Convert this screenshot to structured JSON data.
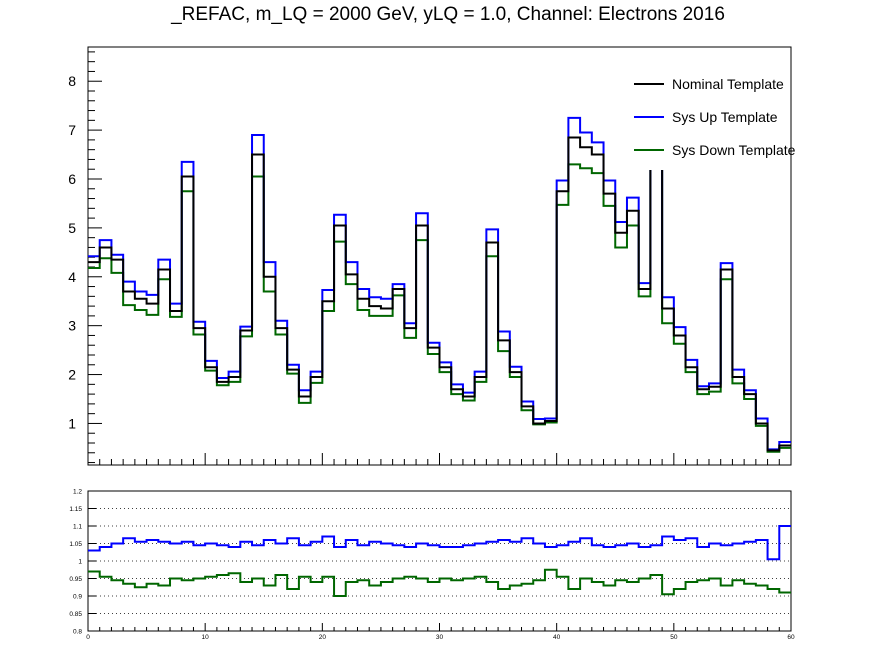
{
  "chart_data": [
    {
      "type": "line",
      "step": true,
      "title": "_REFAC, m_LQ = 2000 GeV, yLQ = 1.0, Channel: Electrons 2016",
      "xlabel": "",
      "ylabel": "",
      "xlim": [
        0,
        60
      ],
      "ylim": [
        0.15,
        8.7
      ],
      "x_bin_edges": [
        0,
        60
      ],
      "yticks": [
        1,
        2,
        3,
        4,
        5,
        6,
        7,
        8
      ],
      "ytick_labels": [
        "1",
        "2",
        "3",
        "4",
        "5",
        "6",
        "7",
        "8"
      ],
      "legend_position": "top-right",
      "series": [
        {
          "name": "Nominal Template",
          "color": "#000000",
          "values": [
            4.3,
            4.6,
            4.35,
            3.7,
            3.55,
            3.45,
            4.15,
            3.3,
            6.05,
            2.95,
            2.15,
            1.85,
            1.95,
            2.9,
            6.5,
            4.0,
            2.95,
            2.1,
            1.55,
            1.95,
            3.5,
            5.05,
            4.05,
            3.55,
            3.4,
            3.35,
            3.75,
            2.95,
            5.05,
            2.55,
            2.15,
            1.7,
            1.55,
            1.95,
            4.7,
            2.7,
            2.05,
            1.35,
            1.0,
            1.05,
            5.75,
            6.85,
            6.65,
            6.5,
            5.7,
            4.9,
            5.35,
            3.75,
            6.8,
            3.35,
            2.8,
            2.15,
            1.7,
            1.75,
            4.15,
            1.95,
            1.6,
            1.0,
            0.45,
            0.55
          ]
        },
        {
          "name": "Sys Up Template",
          "color": "#0000ff",
          "values": [
            4.42,
            4.75,
            4.45,
            3.9,
            3.7,
            3.63,
            4.35,
            3.45,
            6.35,
            3.08,
            2.28,
            1.93,
            2.06,
            2.98,
            6.9,
            4.3,
            3.1,
            2.2,
            1.68,
            2.06,
            3.73,
            5.27,
            4.3,
            3.75,
            3.58,
            3.55,
            3.85,
            3.05,
            5.3,
            2.65,
            2.25,
            1.8,
            1.63,
            2.06,
            4.97,
            2.88,
            2.16,
            1.45,
            1.09,
            1.1,
            5.97,
            7.25,
            6.95,
            6.75,
            5.97,
            5.12,
            5.62,
            3.87,
            7.2,
            3.58,
            2.97,
            2.3,
            1.76,
            1.82,
            4.28,
            2.1,
            1.68,
            1.1,
            0.47,
            0.62
          ]
        },
        {
          "name": "Sys Down Template",
          "color": "#006600",
          "values": [
            4.18,
            4.38,
            4.08,
            3.42,
            3.32,
            3.22,
            3.95,
            3.18,
            5.75,
            2.82,
            2.08,
            1.78,
            1.85,
            2.78,
            6.05,
            3.7,
            2.82,
            2.02,
            1.42,
            1.83,
            3.3,
            4.72,
            3.85,
            3.32,
            3.2,
            3.2,
            3.62,
            2.75,
            4.75,
            2.42,
            2.05,
            1.6,
            1.47,
            1.85,
            4.42,
            2.48,
            1.95,
            1.27,
            0.98,
            1.02,
            5.47,
            6.3,
            6.22,
            6.12,
            5.45,
            4.6,
            5.05,
            3.6,
            6.3,
            3.05,
            2.63,
            2.05,
            1.6,
            1.65,
            3.95,
            1.82,
            1.5,
            0.95,
            0.42,
            0.5
          ]
        }
      ]
    },
    {
      "type": "line",
      "step": true,
      "title": "",
      "xlabel": "",
      "ylabel": "",
      "xlim": [
        0,
        60
      ],
      "ylim": [
        0.8,
        1.2
      ],
      "xticks": [
        0,
        10,
        20,
        30,
        40,
        50,
        60
      ],
      "xtick_labels": [
        "0",
        "10",
        "20",
        "30",
        "40",
        "50",
        "60"
      ],
      "yticks": [
        0.8,
        0.85,
        0.9,
        0.95,
        1,
        1.05,
        1.1,
        1.15,
        1.2
      ],
      "ytick_labels": [
        "0.8",
        "0.85",
        "0.9",
        "0.95",
        "1",
        "1.05",
        "1.1",
        "1.15",
        "1.2"
      ],
      "grid": "horizontal-dotted",
      "series": [
        {
          "name": "Sys Up Template",
          "color": "#0000ff",
          "values": [
            1.03,
            1.04,
            1.05,
            1.065,
            1.055,
            1.06,
            1.055,
            1.05,
            1.055,
            1.045,
            1.05,
            1.045,
            1.04,
            1.055,
            1.045,
            1.06,
            1.05,
            1.065,
            1.045,
            1.055,
            1.07,
            1.04,
            1.06,
            1.045,
            1.055,
            1.05,
            1.045,
            1.04,
            1.05,
            1.045,
            1.04,
            1.04,
            1.045,
            1.05,
            1.055,
            1.06,
            1.055,
            1.065,
            1.05,
            1.04,
            1.045,
            1.055,
            1.065,
            1.045,
            1.04,
            1.045,
            1.05,
            1.04,
            1.045,
            1.07,
            1.06,
            1.065,
            1.04,
            1.05,
            1.045,
            1.05,
            1.055,
            1.06,
            1.005,
            1.1
          ]
        },
        {
          "name": "Sys Down Template",
          "color": "#006600",
          "values": [
            0.97,
            0.955,
            0.945,
            0.935,
            0.925,
            0.935,
            0.93,
            0.95,
            0.945,
            0.95,
            0.955,
            0.96,
            0.965,
            0.94,
            0.95,
            0.93,
            0.96,
            0.92,
            0.955,
            0.94,
            0.955,
            0.9,
            0.94,
            0.945,
            0.93,
            0.94,
            0.95,
            0.955,
            0.95,
            0.94,
            0.95,
            0.945,
            0.95,
            0.955,
            0.94,
            0.92,
            0.93,
            0.935,
            0.945,
            0.975,
            0.955,
            0.92,
            0.95,
            0.94,
            0.93,
            0.945,
            0.94,
            0.95,
            0.96,
            0.905,
            0.92,
            0.94,
            0.945,
            0.95,
            0.93,
            0.945,
            0.935,
            0.93,
            0.92,
            0.91
          ]
        }
      ]
    }
  ]
}
